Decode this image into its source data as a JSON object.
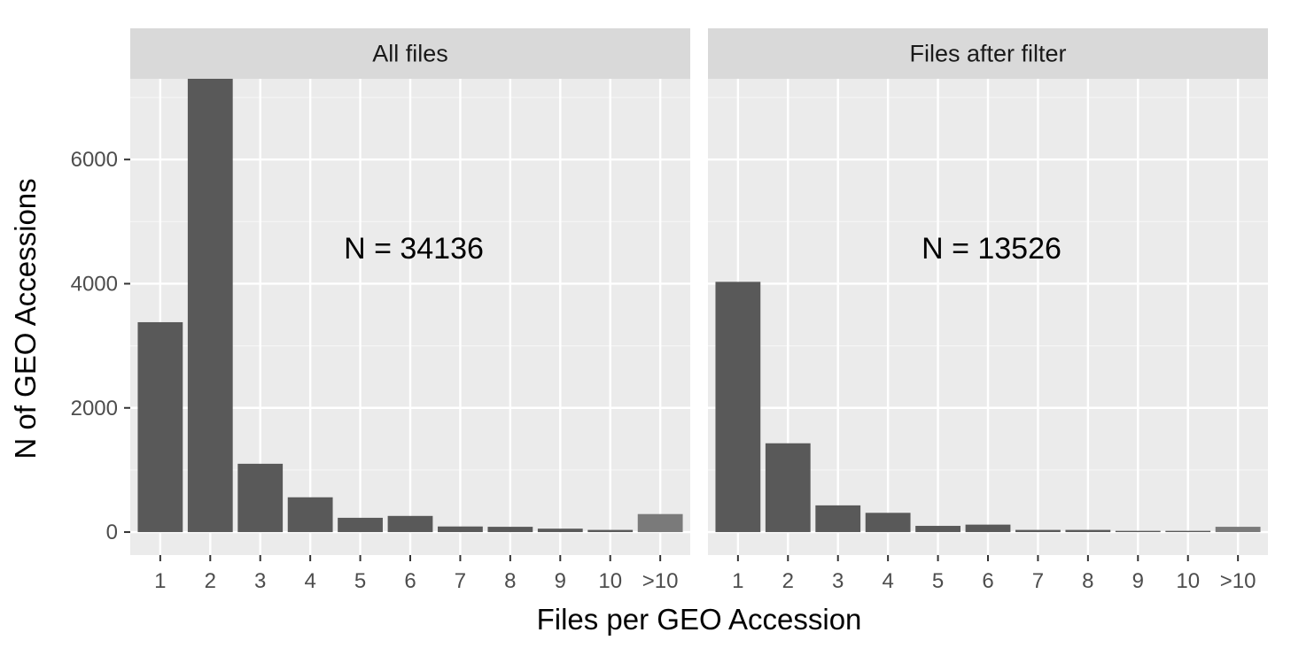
{
  "chart_data": {
    "type": "bar",
    "xlabel": "Files per GEO Accession",
    "ylabel": "N of GEO Accessions",
    "categories": [
      "1",
      "2",
      "3",
      "4",
      "5",
      "6",
      "7",
      "8",
      "9",
      "10",
      ">10"
    ],
    "ylim": [
      -370,
      7300
    ],
    "yticks": [
      0,
      2000,
      4000,
      6000
    ],
    "grid": "on",
    "legend": "none",
    "colors": {
      "bar": "#595959",
      "bar_stack_overflow": "#7a7a7a",
      "panel_background": "#ebebeb",
      "strip_background": "#d9d9d9",
      "grid_major": "#ffffff",
      "grid_minor": "#f5f5f5"
    },
    "panels": [
      {
        "strip": "All files",
        "annotation": "N = 34136",
        "values": [
          3380,
          7460,
          1100,
          560,
          230,
          260,
          90,
          85,
          55,
          35,
          290
        ]
      },
      {
        "strip": "Files after filter",
        "annotation": "N = 13526",
        "values": [
          4030,
          1430,
          430,
          310,
          100,
          120,
          35,
          35,
          20,
          20,
          85
        ]
      }
    ]
  }
}
